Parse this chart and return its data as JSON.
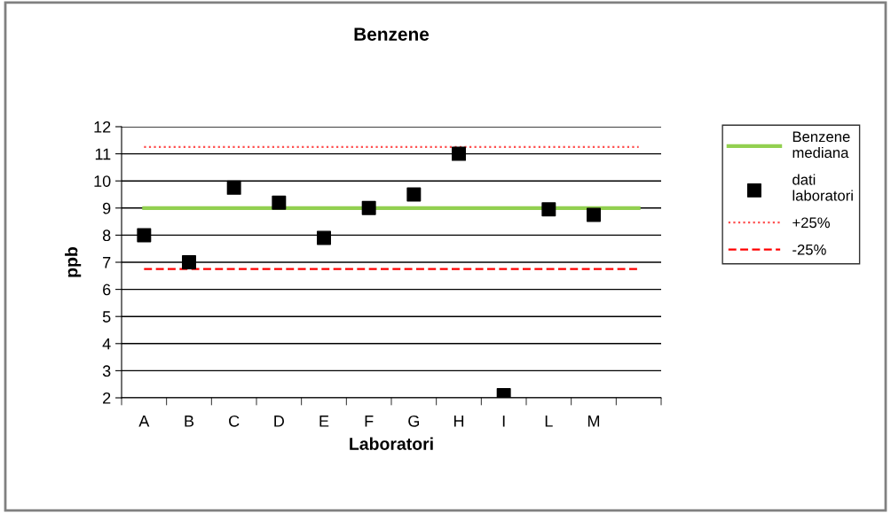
{
  "chart_data": {
    "type": "scatter",
    "title": "Benzene",
    "xlabel": "Laboratori",
    "ylabel": "ppb",
    "categories": [
      "A",
      "B",
      "C",
      "D",
      "E",
      "F",
      "G",
      "H",
      "I",
      "L",
      "M",
      null
    ],
    "series": [
      {
        "name": "Benzene mediana",
        "type": "line",
        "color": "#92d050",
        "line_style": "solid",
        "marker": "none",
        "values": [
          9,
          9,
          9,
          9,
          9,
          9,
          9,
          9,
          9,
          9,
          9,
          9
        ]
      },
      {
        "name": "dati laboratori",
        "color": "#000000",
        "marker": "square",
        "values": [
          8.0,
          7.0,
          9.75,
          9.2,
          7.9,
          9.0,
          9.5,
          11.0,
          2.1,
          8.95,
          8.75,
          null
        ]
      },
      {
        "name": "+25%",
        "type": "line",
        "color": "#ff5050",
        "line_style": "dotted",
        "marker": "none",
        "values": [
          11.25,
          11.25,
          11.25,
          11.25,
          11.25,
          11.25,
          11.25,
          11.25,
          11.25,
          11.25,
          11.25,
          11.25
        ]
      },
      {
        "name": "-25%",
        "type": "line",
        "color": "#ff0000",
        "line_style": "dashed",
        "marker": "none",
        "values": [
          6.75,
          6.75,
          6.75,
          6.75,
          6.75,
          6.75,
          6.75,
          6.75,
          6.75,
          6.75,
          6.75,
          6.75
        ]
      }
    ],
    "ylim": [
      2,
      12
    ],
    "yticks": [
      2,
      3,
      4,
      5,
      6,
      7,
      8,
      9,
      10,
      11,
      12
    ],
    "grid": "y",
    "legend": "right"
  }
}
